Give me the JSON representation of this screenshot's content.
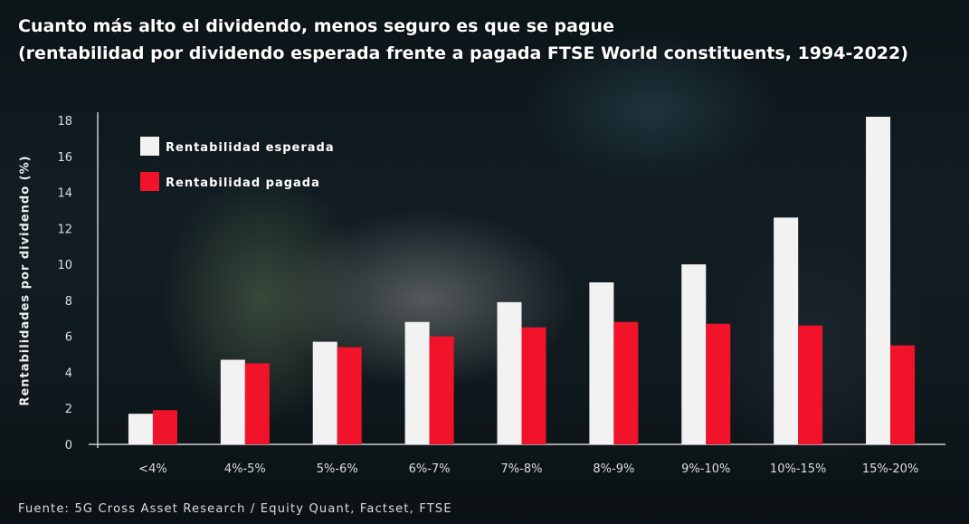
{
  "chart_data": {
    "type": "bar",
    "title": "Cuanto más alto el dividendo, menos seguro es que se pague",
    "subtitle": "(rentabilidad por dividendo esperada frente a pagada FTSE World constituents, 1994-2022)",
    "xlabel": "",
    "ylabel": "Rentabilidades por dividendo (%)",
    "ylim": [
      0,
      18
    ],
    "yticks": [
      0,
      2,
      4,
      6,
      8,
      10,
      12,
      14,
      16,
      18
    ],
    "grid": false,
    "legend_position": "top-left",
    "categories": [
      "<4%",
      "4%-5%",
      "5%-6%",
      "6%-7%",
      "7%-8%",
      "8%-9%",
      "9%-10%",
      "10%-15%",
      "15%-20%"
    ],
    "series": [
      {
        "name": "Rentabilidad esperada",
        "color": "#f2f2f2",
        "values": [
          1.7,
          4.7,
          5.7,
          6.8,
          7.9,
          9.0,
          10.0,
          12.6,
          18.2
        ]
      },
      {
        "name": "Rentabilidad pagada",
        "color": "#f0132a",
        "values": [
          1.9,
          4.5,
          5.4,
          6.0,
          6.5,
          6.8,
          6.7,
          6.6,
          5.5
        ]
      }
    ],
    "source": "Fuente: 5G Cross Asset Research / Equity Quant, Factset, FTSE"
  }
}
